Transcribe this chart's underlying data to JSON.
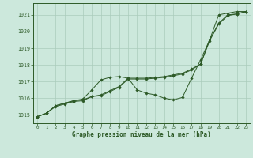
{
  "xlabel": "Graphe pression niveau de la mer (hPa)",
  "bg_color": "#cce8dc",
  "grid_color": "#aaccbb",
  "line_color": "#2d5a27",
  "xlim": [
    -0.5,
    23.5
  ],
  "ylim": [
    1014.5,
    1021.7
  ],
  "yticks": [
    1015,
    1016,
    1017,
    1018,
    1019,
    1020,
    1021
  ],
  "xticks": [
    0,
    1,
    2,
    3,
    4,
    5,
    6,
    7,
    8,
    9,
    10,
    11,
    12,
    13,
    14,
    15,
    16,
    17,
    18,
    19,
    20,
    21,
    22,
    23
  ],
  "line1_x": [
    0,
    1,
    2,
    3,
    4,
    5,
    6,
    7,
    8,
    9,
    10,
    11,
    12,
    13,
    14,
    15,
    16,
    17,
    18,
    19,
    20,
    21,
    22,
    23
  ],
  "line1_y": [
    1014.9,
    1015.1,
    1015.5,
    1015.65,
    1015.8,
    1015.85,
    1016.1,
    1016.15,
    1016.4,
    1016.65,
    1017.15,
    1017.15,
    1017.15,
    1017.2,
    1017.25,
    1017.35,
    1017.45,
    1017.7,
    1018.05,
    1019.45,
    1020.45,
    1020.95,
    1021.05,
    1021.2
  ],
  "line2_x": [
    0,
    1,
    2,
    3,
    4,
    5,
    6,
    7,
    8,
    9,
    10,
    11,
    12,
    13,
    14,
    15,
    16,
    17,
    18,
    19,
    20,
    21,
    22,
    23
  ],
  "line2_y": [
    1014.9,
    1015.1,
    1015.55,
    1015.7,
    1015.85,
    1015.9,
    1016.1,
    1016.2,
    1016.45,
    1016.7,
    1017.2,
    1017.2,
    1017.2,
    1017.25,
    1017.3,
    1017.4,
    1017.5,
    1017.75,
    1018.05,
    1019.5,
    1020.5,
    1021.0,
    1021.05,
    1021.2
  ],
  "line3_x": [
    0,
    1,
    2,
    3,
    4,
    5,
    6,
    7,
    8,
    9,
    10,
    11,
    12,
    13,
    14,
    15,
    16,
    17,
    18,
    19,
    20,
    21,
    22,
    23
  ],
  "line3_y": [
    1014.9,
    1015.1,
    1015.55,
    1015.7,
    1015.85,
    1015.95,
    1016.5,
    1017.1,
    1017.25,
    1017.3,
    1017.2,
    1016.5,
    1016.3,
    1016.2,
    1016.0,
    1015.9,
    1016.05,
    1017.2,
    1018.3,
    1019.5,
    1021.0,
    1021.1,
    1021.2,
    1021.2
  ]
}
